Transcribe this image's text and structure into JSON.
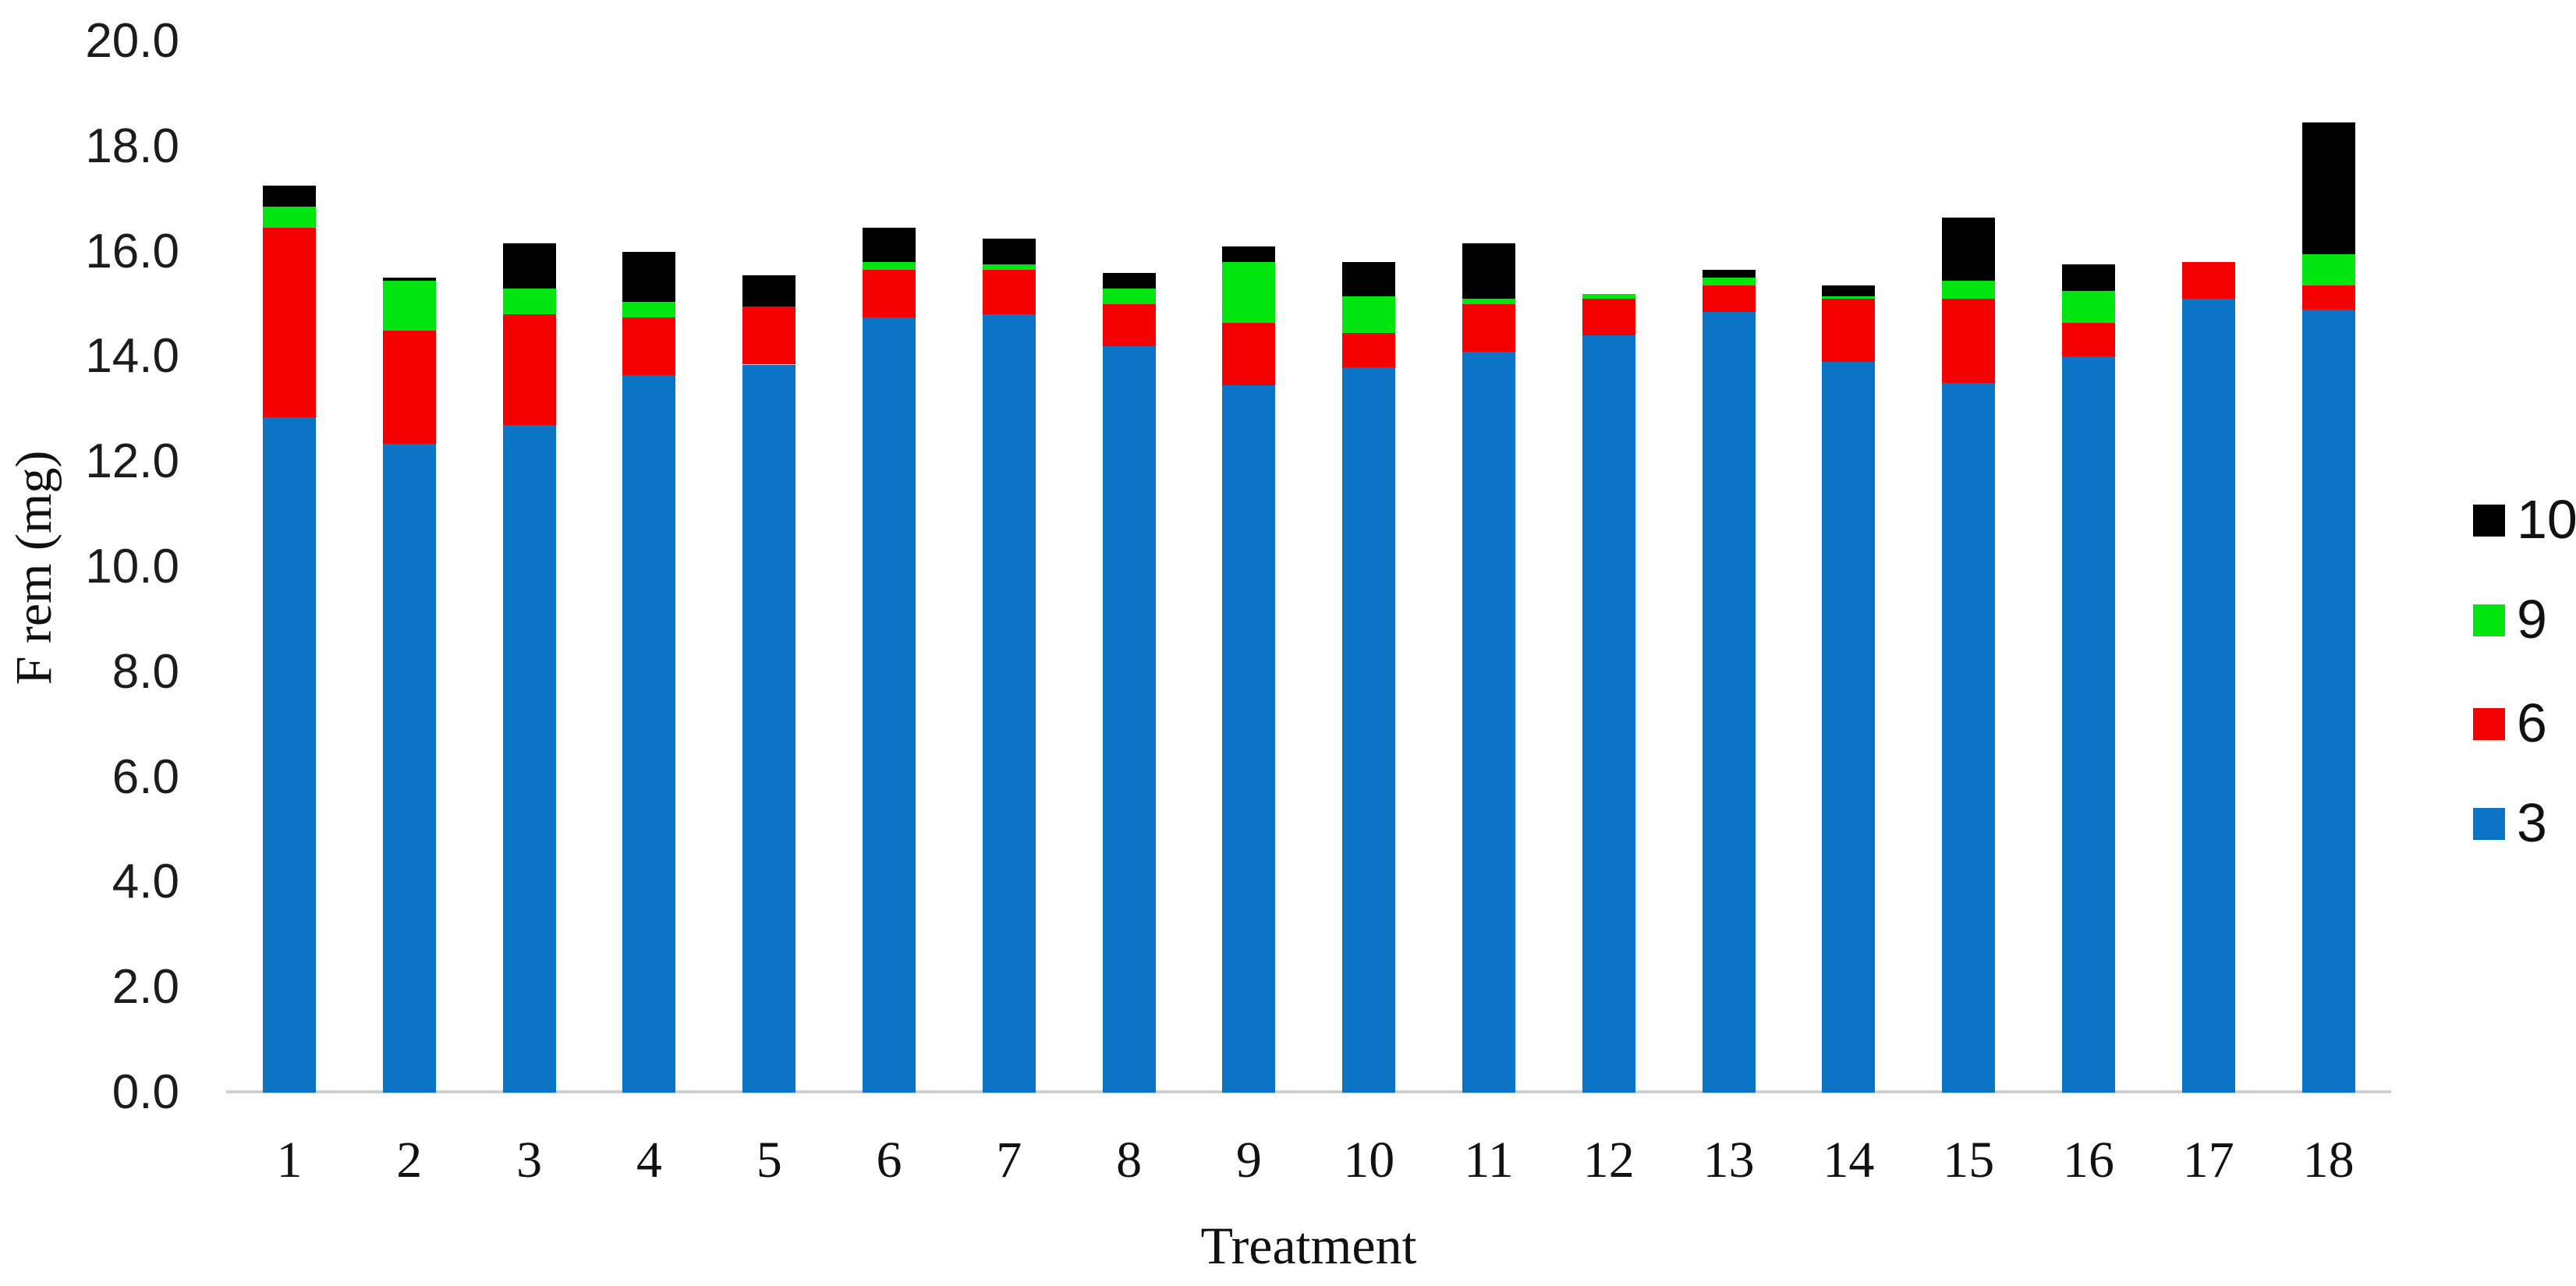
{
  "chart_data": {
    "type": "bar",
    "stacked": true,
    "xlabel": "Treatment",
    "ylabel": "F rem (mg)",
    "ylim": [
      0,
      20
    ],
    "ytick_step": 2.0,
    "ytick_labels": [
      "0.0",
      "2.0",
      "4.0",
      "6.0",
      "8.0",
      "10.0",
      "12.0",
      "14.0",
      "16.0",
      "18.0",
      "20.0"
    ],
    "grid": false,
    "legend_position": "right",
    "legend_order_top_to_bottom": [
      "10",
      "9",
      "6",
      "3"
    ],
    "categories": [
      "1",
      "2",
      "3",
      "4",
      "5",
      "6",
      "7",
      "8",
      "9",
      "10",
      "11",
      "12",
      "13",
      "14",
      "15",
      "16",
      "17",
      "18"
    ],
    "series": [
      {
        "name": "3",
        "color": "#0b74c4",
        "values": [
          12.85,
          12.35,
          12.7,
          13.65,
          13.85,
          14.75,
          14.8,
          14.2,
          13.45,
          13.8,
          14.1,
          14.4,
          14.85,
          13.9,
          13.5,
          14.0,
          15.1,
          14.9
        ]
      },
      {
        "name": "6",
        "color": "#f40000",
        "values": [
          3.6,
          2.15,
          2.1,
          1.1,
          1.1,
          0.9,
          0.85,
          0.8,
          1.2,
          0.65,
          0.9,
          0.7,
          0.5,
          1.2,
          1.6,
          0.65,
          0.7,
          0.45
        ]
      },
      {
        "name": "9",
        "color": "#00e50f",
        "values": [
          0.4,
          0.95,
          0.5,
          0.3,
          0.0,
          0.15,
          0.1,
          0.3,
          1.15,
          0.7,
          0.1,
          0.1,
          0.15,
          0.05,
          0.35,
          0.6,
          0.0,
          0.6
        ]
      },
      {
        "name": "10",
        "color": "#000000",
        "values": [
          0.4,
          0.05,
          0.85,
          0.95,
          0.6,
          0.65,
          0.5,
          0.3,
          0.3,
          0.65,
          1.05,
          0.0,
          0.15,
          0.2,
          1.2,
          0.5,
          0.0,
          2.5
        ]
      }
    ],
    "totals": [
      17.25,
      15.5,
      16.15,
      16.0,
      15.55,
      16.45,
      16.25,
      15.6,
      16.1,
      15.8,
      16.15,
      15.2,
      15.65,
      15.35,
      16.65,
      15.75,
      15.8,
      18.45
    ],
    "colors": {
      "axis_line": "#d0d0d0",
      "text": "#111111",
      "series_3": "#0b74c4",
      "series_6": "#f40000",
      "series_9": "#00e50f",
      "series_10": "#000000"
    }
  }
}
